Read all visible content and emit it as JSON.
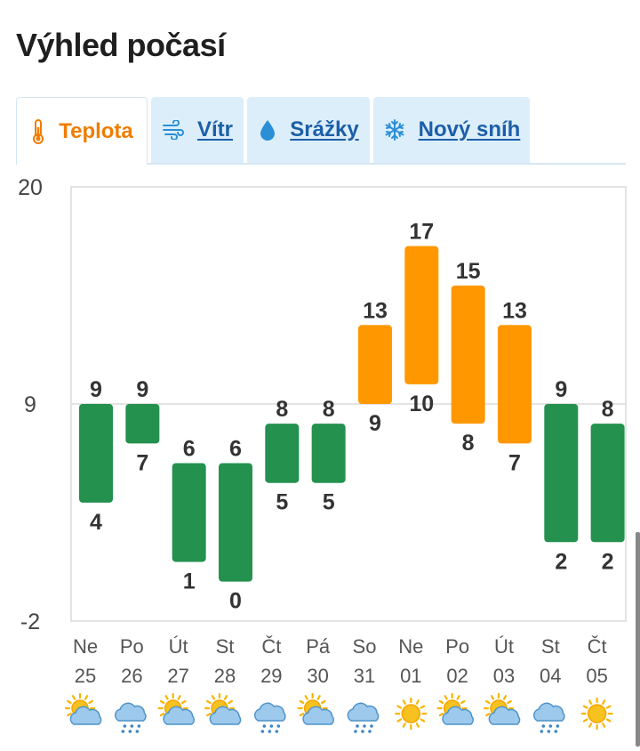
{
  "header": {
    "title": "Výhled počasí"
  },
  "tabs": [
    {
      "label": "Teplota",
      "icon": "thermometer-icon",
      "active": true
    },
    {
      "label": "Vítr",
      "icon": "wind-icon",
      "active": false
    },
    {
      "label": "Srážky",
      "icon": "raindrop-icon",
      "active": false
    },
    {
      "label": "Nový sníh",
      "icon": "snowflake-icon",
      "active": false
    }
  ],
  "colors": {
    "accent": "#f07d00",
    "link": "#1c5fa8",
    "cold_bar": "#24914f",
    "warm_bar": "#ff9800",
    "tab_bg": "#dceefa"
  },
  "chart_data": {
    "type": "bar",
    "subtype": "range",
    "ylim": [
      -2,
      20
    ],
    "yticks": [
      -2,
      9,
      20
    ],
    "grid": true,
    "categories": [
      {
        "day": "Ne",
        "date": "25",
        "icon": "sun-cloud-icon"
      },
      {
        "day": "Po",
        "date": "26",
        "icon": "rain-cloud-icon"
      },
      {
        "day": "Út",
        "date": "27",
        "icon": "sun-cloud-icon"
      },
      {
        "day": "St",
        "date": "28",
        "icon": "sun-cloud-icon"
      },
      {
        "day": "Čt",
        "date": "29",
        "icon": "rain-cloud-icon"
      },
      {
        "day": "Pá",
        "date": "30",
        "icon": "sun-cloud-icon"
      },
      {
        "day": "So",
        "date": "31",
        "icon": "rain-cloud-icon"
      },
      {
        "day": "Ne",
        "date": "01",
        "icon": "sun-icon"
      },
      {
        "day": "Po",
        "date": "02",
        "icon": "sun-cloud-icon"
      },
      {
        "day": "Út",
        "date": "03",
        "icon": "sun-cloud-icon"
      },
      {
        "day": "St",
        "date": "04",
        "icon": "rain-cloud-icon"
      },
      {
        "day": "Čt",
        "date": "05",
        "icon": "sun-icon"
      }
    ],
    "series": [
      {
        "values_max": [
          9,
          9,
          6,
          6,
          8,
          8,
          13,
          17,
          15,
          13,
          9,
          8
        ]
      },
      {
        "values_min": [
          4,
          7,
          1,
          0,
          5,
          5,
          9,
          10,
          8,
          7,
          2,
          2
        ]
      }
    ]
  }
}
